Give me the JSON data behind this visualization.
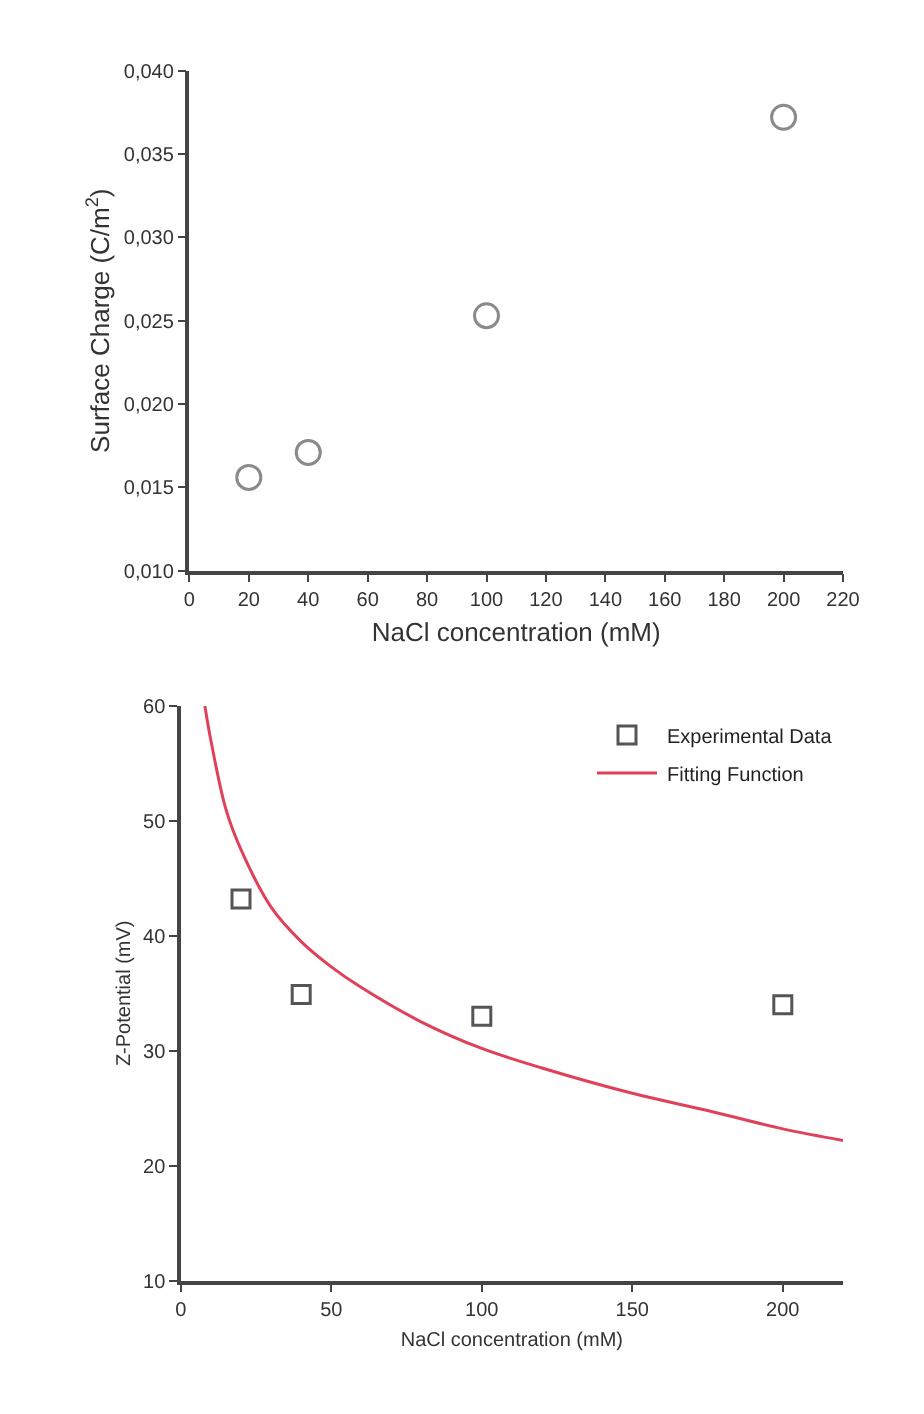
{
  "chart_data": [
    {
      "type": "scatter",
      "xlabel": "NaCl concentration (mM)",
      "ylabel": "Surface Charge (C/m$^{2}$)",
      "xlim": [
        0,
        220
      ],
      "xticks": [
        0,
        20,
        40,
        60,
        80,
        100,
        120,
        140,
        160,
        180,
        200,
        220
      ],
      "ylim": [
        0.01,
        0.04
      ],
      "yticks": [
        {
          "value": 0.01,
          "label": "0,010"
        },
        {
          "value": 0.015,
          "label": "0,015"
        },
        {
          "value": 0.02,
          "label": "0,020"
        },
        {
          "value": 0.025,
          "label": "0,025"
        },
        {
          "value": 0.03,
          "label": "0,030"
        },
        {
          "value": 0.035,
          "label": "0,035"
        },
        {
          "value": 0.04,
          "label": "0,040"
        }
      ],
      "legend": false,
      "marker": "circle",
      "series": [
        {
          "color": "#8a8a8a",
          "x": [
            20,
            40,
            100,
            200
          ],
          "values": [
            0.0156,
            0.0171,
            0.0253,
            0.0372
          ]
        }
      ]
    },
    {
      "type": "scatter",
      "xlabel": "NaCl concentration (mM)",
      "ylabel": "Z-Potential (mV)",
      "xlim": [
        0,
        220
      ],
      "xticks": [
        0,
        50,
        100,
        150,
        200
      ],
      "ylim": [
        10,
        60
      ],
      "yticks": [
        10,
        20,
        30,
        40,
        50,
        60
      ],
      "legend": "top right",
      "series": [
        {
          "name": "Experimental Data",
          "type": "scatter",
          "marker": "square",
          "color": "#555555",
          "x": [
            20,
            40,
            100,
            200
          ],
          "values": [
            43.2,
            34.9,
            33.0,
            34.0
          ]
        },
        {
          "name": "Fitting Function",
          "type": "line",
          "marker": "none",
          "line_style": "solid",
          "color": "#e0405a",
          "x": [
            8,
            10,
            15,
            20,
            30,
            40,
            50,
            60,
            80,
            100,
            120,
            150,
            175,
            200,
            220
          ],
          "values": [
            60,
            57,
            51,
            47.5,
            42.5,
            39.5,
            37.3,
            35.5,
            32.5,
            30.2,
            28.5,
            26.3,
            24.8,
            23.2,
            22.2
          ]
        }
      ]
    }
  ]
}
